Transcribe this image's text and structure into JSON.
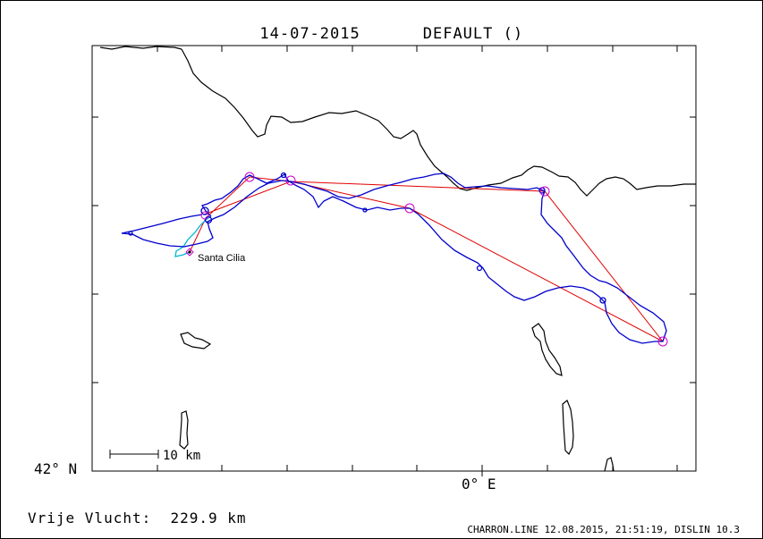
{
  "header": {
    "date": "14-07-2015",
    "task_name": "DEFAULT ()"
  },
  "map": {
    "latitude_label": "42° N",
    "longitude_label": "0° E",
    "scale_bar_label": "10 km",
    "takeoff_label": "Santa Cilia",
    "colors": {
      "coastline": "#000000",
      "track": "#0000cc",
      "track_start": "#00b8d8",
      "task_legs": "#e00000",
      "turnpoints": "#cc00cc"
    }
  },
  "summary": {
    "distance_text": "Vrije Vlucht:  229.9 km"
  },
  "footer": {
    "text": "CHARRON.LINE 12.08.2015, 21:51:19, DISLIN 10.3"
  }
}
